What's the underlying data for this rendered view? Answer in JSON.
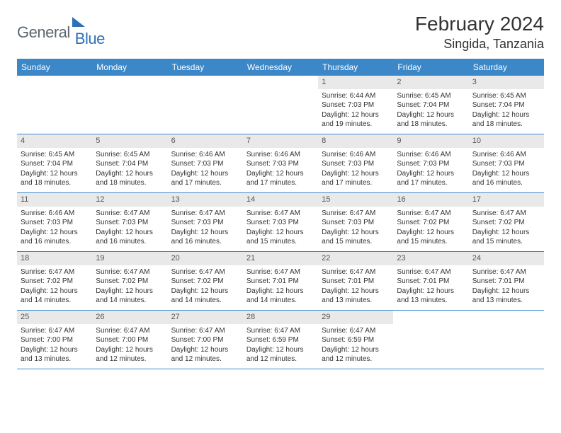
{
  "logo": {
    "part1": "General",
    "part2": "Blue"
  },
  "title": "February 2024",
  "location": "Singida, Tanzania",
  "colors": {
    "header_bg": "#3b87c8",
    "header_text": "#ffffff",
    "daynum_bg": "#e9e9e9",
    "border": "#3b87c8",
    "logo_gray": "#5b6770",
    "logo_blue": "#2d6fb8"
  },
  "weekdays": [
    "Sunday",
    "Monday",
    "Tuesday",
    "Wednesday",
    "Thursday",
    "Friday",
    "Saturday"
  ],
  "weeks": [
    [
      null,
      null,
      null,
      null,
      {
        "n": "1",
        "sr": "Sunrise: 6:44 AM",
        "ss": "Sunset: 7:03 PM",
        "d1": "Daylight: 12 hours",
        "d2": "and 19 minutes."
      },
      {
        "n": "2",
        "sr": "Sunrise: 6:45 AM",
        "ss": "Sunset: 7:04 PM",
        "d1": "Daylight: 12 hours",
        "d2": "and 18 minutes."
      },
      {
        "n": "3",
        "sr": "Sunrise: 6:45 AM",
        "ss": "Sunset: 7:04 PM",
        "d1": "Daylight: 12 hours",
        "d2": "and 18 minutes."
      }
    ],
    [
      {
        "n": "4",
        "sr": "Sunrise: 6:45 AM",
        "ss": "Sunset: 7:04 PM",
        "d1": "Daylight: 12 hours",
        "d2": "and 18 minutes."
      },
      {
        "n": "5",
        "sr": "Sunrise: 6:45 AM",
        "ss": "Sunset: 7:04 PM",
        "d1": "Daylight: 12 hours",
        "d2": "and 18 minutes."
      },
      {
        "n": "6",
        "sr": "Sunrise: 6:46 AM",
        "ss": "Sunset: 7:03 PM",
        "d1": "Daylight: 12 hours",
        "d2": "and 17 minutes."
      },
      {
        "n": "7",
        "sr": "Sunrise: 6:46 AM",
        "ss": "Sunset: 7:03 PM",
        "d1": "Daylight: 12 hours",
        "d2": "and 17 minutes."
      },
      {
        "n": "8",
        "sr": "Sunrise: 6:46 AM",
        "ss": "Sunset: 7:03 PM",
        "d1": "Daylight: 12 hours",
        "d2": "and 17 minutes."
      },
      {
        "n": "9",
        "sr": "Sunrise: 6:46 AM",
        "ss": "Sunset: 7:03 PM",
        "d1": "Daylight: 12 hours",
        "d2": "and 17 minutes."
      },
      {
        "n": "10",
        "sr": "Sunrise: 6:46 AM",
        "ss": "Sunset: 7:03 PM",
        "d1": "Daylight: 12 hours",
        "d2": "and 16 minutes."
      }
    ],
    [
      {
        "n": "11",
        "sr": "Sunrise: 6:46 AM",
        "ss": "Sunset: 7:03 PM",
        "d1": "Daylight: 12 hours",
        "d2": "and 16 minutes."
      },
      {
        "n": "12",
        "sr": "Sunrise: 6:47 AM",
        "ss": "Sunset: 7:03 PM",
        "d1": "Daylight: 12 hours",
        "d2": "and 16 minutes."
      },
      {
        "n": "13",
        "sr": "Sunrise: 6:47 AM",
        "ss": "Sunset: 7:03 PM",
        "d1": "Daylight: 12 hours",
        "d2": "and 16 minutes."
      },
      {
        "n": "14",
        "sr": "Sunrise: 6:47 AM",
        "ss": "Sunset: 7:03 PM",
        "d1": "Daylight: 12 hours",
        "d2": "and 15 minutes."
      },
      {
        "n": "15",
        "sr": "Sunrise: 6:47 AM",
        "ss": "Sunset: 7:03 PM",
        "d1": "Daylight: 12 hours",
        "d2": "and 15 minutes."
      },
      {
        "n": "16",
        "sr": "Sunrise: 6:47 AM",
        "ss": "Sunset: 7:02 PM",
        "d1": "Daylight: 12 hours",
        "d2": "and 15 minutes."
      },
      {
        "n": "17",
        "sr": "Sunrise: 6:47 AM",
        "ss": "Sunset: 7:02 PM",
        "d1": "Daylight: 12 hours",
        "d2": "and 15 minutes."
      }
    ],
    [
      {
        "n": "18",
        "sr": "Sunrise: 6:47 AM",
        "ss": "Sunset: 7:02 PM",
        "d1": "Daylight: 12 hours",
        "d2": "and 14 minutes."
      },
      {
        "n": "19",
        "sr": "Sunrise: 6:47 AM",
        "ss": "Sunset: 7:02 PM",
        "d1": "Daylight: 12 hours",
        "d2": "and 14 minutes."
      },
      {
        "n": "20",
        "sr": "Sunrise: 6:47 AM",
        "ss": "Sunset: 7:02 PM",
        "d1": "Daylight: 12 hours",
        "d2": "and 14 minutes."
      },
      {
        "n": "21",
        "sr": "Sunrise: 6:47 AM",
        "ss": "Sunset: 7:01 PM",
        "d1": "Daylight: 12 hours",
        "d2": "and 14 minutes."
      },
      {
        "n": "22",
        "sr": "Sunrise: 6:47 AM",
        "ss": "Sunset: 7:01 PM",
        "d1": "Daylight: 12 hours",
        "d2": "and 13 minutes."
      },
      {
        "n": "23",
        "sr": "Sunrise: 6:47 AM",
        "ss": "Sunset: 7:01 PM",
        "d1": "Daylight: 12 hours",
        "d2": "and 13 minutes."
      },
      {
        "n": "24",
        "sr": "Sunrise: 6:47 AM",
        "ss": "Sunset: 7:01 PM",
        "d1": "Daylight: 12 hours",
        "d2": "and 13 minutes."
      }
    ],
    [
      {
        "n": "25",
        "sr": "Sunrise: 6:47 AM",
        "ss": "Sunset: 7:00 PM",
        "d1": "Daylight: 12 hours",
        "d2": "and 13 minutes."
      },
      {
        "n": "26",
        "sr": "Sunrise: 6:47 AM",
        "ss": "Sunset: 7:00 PM",
        "d1": "Daylight: 12 hours",
        "d2": "and 12 minutes."
      },
      {
        "n": "27",
        "sr": "Sunrise: 6:47 AM",
        "ss": "Sunset: 7:00 PM",
        "d1": "Daylight: 12 hours",
        "d2": "and 12 minutes."
      },
      {
        "n": "28",
        "sr": "Sunrise: 6:47 AM",
        "ss": "Sunset: 6:59 PM",
        "d1": "Daylight: 12 hours",
        "d2": "and 12 minutes."
      },
      {
        "n": "29",
        "sr": "Sunrise: 6:47 AM",
        "ss": "Sunset: 6:59 PM",
        "d1": "Daylight: 12 hours",
        "d2": "and 12 minutes."
      },
      null,
      null
    ]
  ]
}
